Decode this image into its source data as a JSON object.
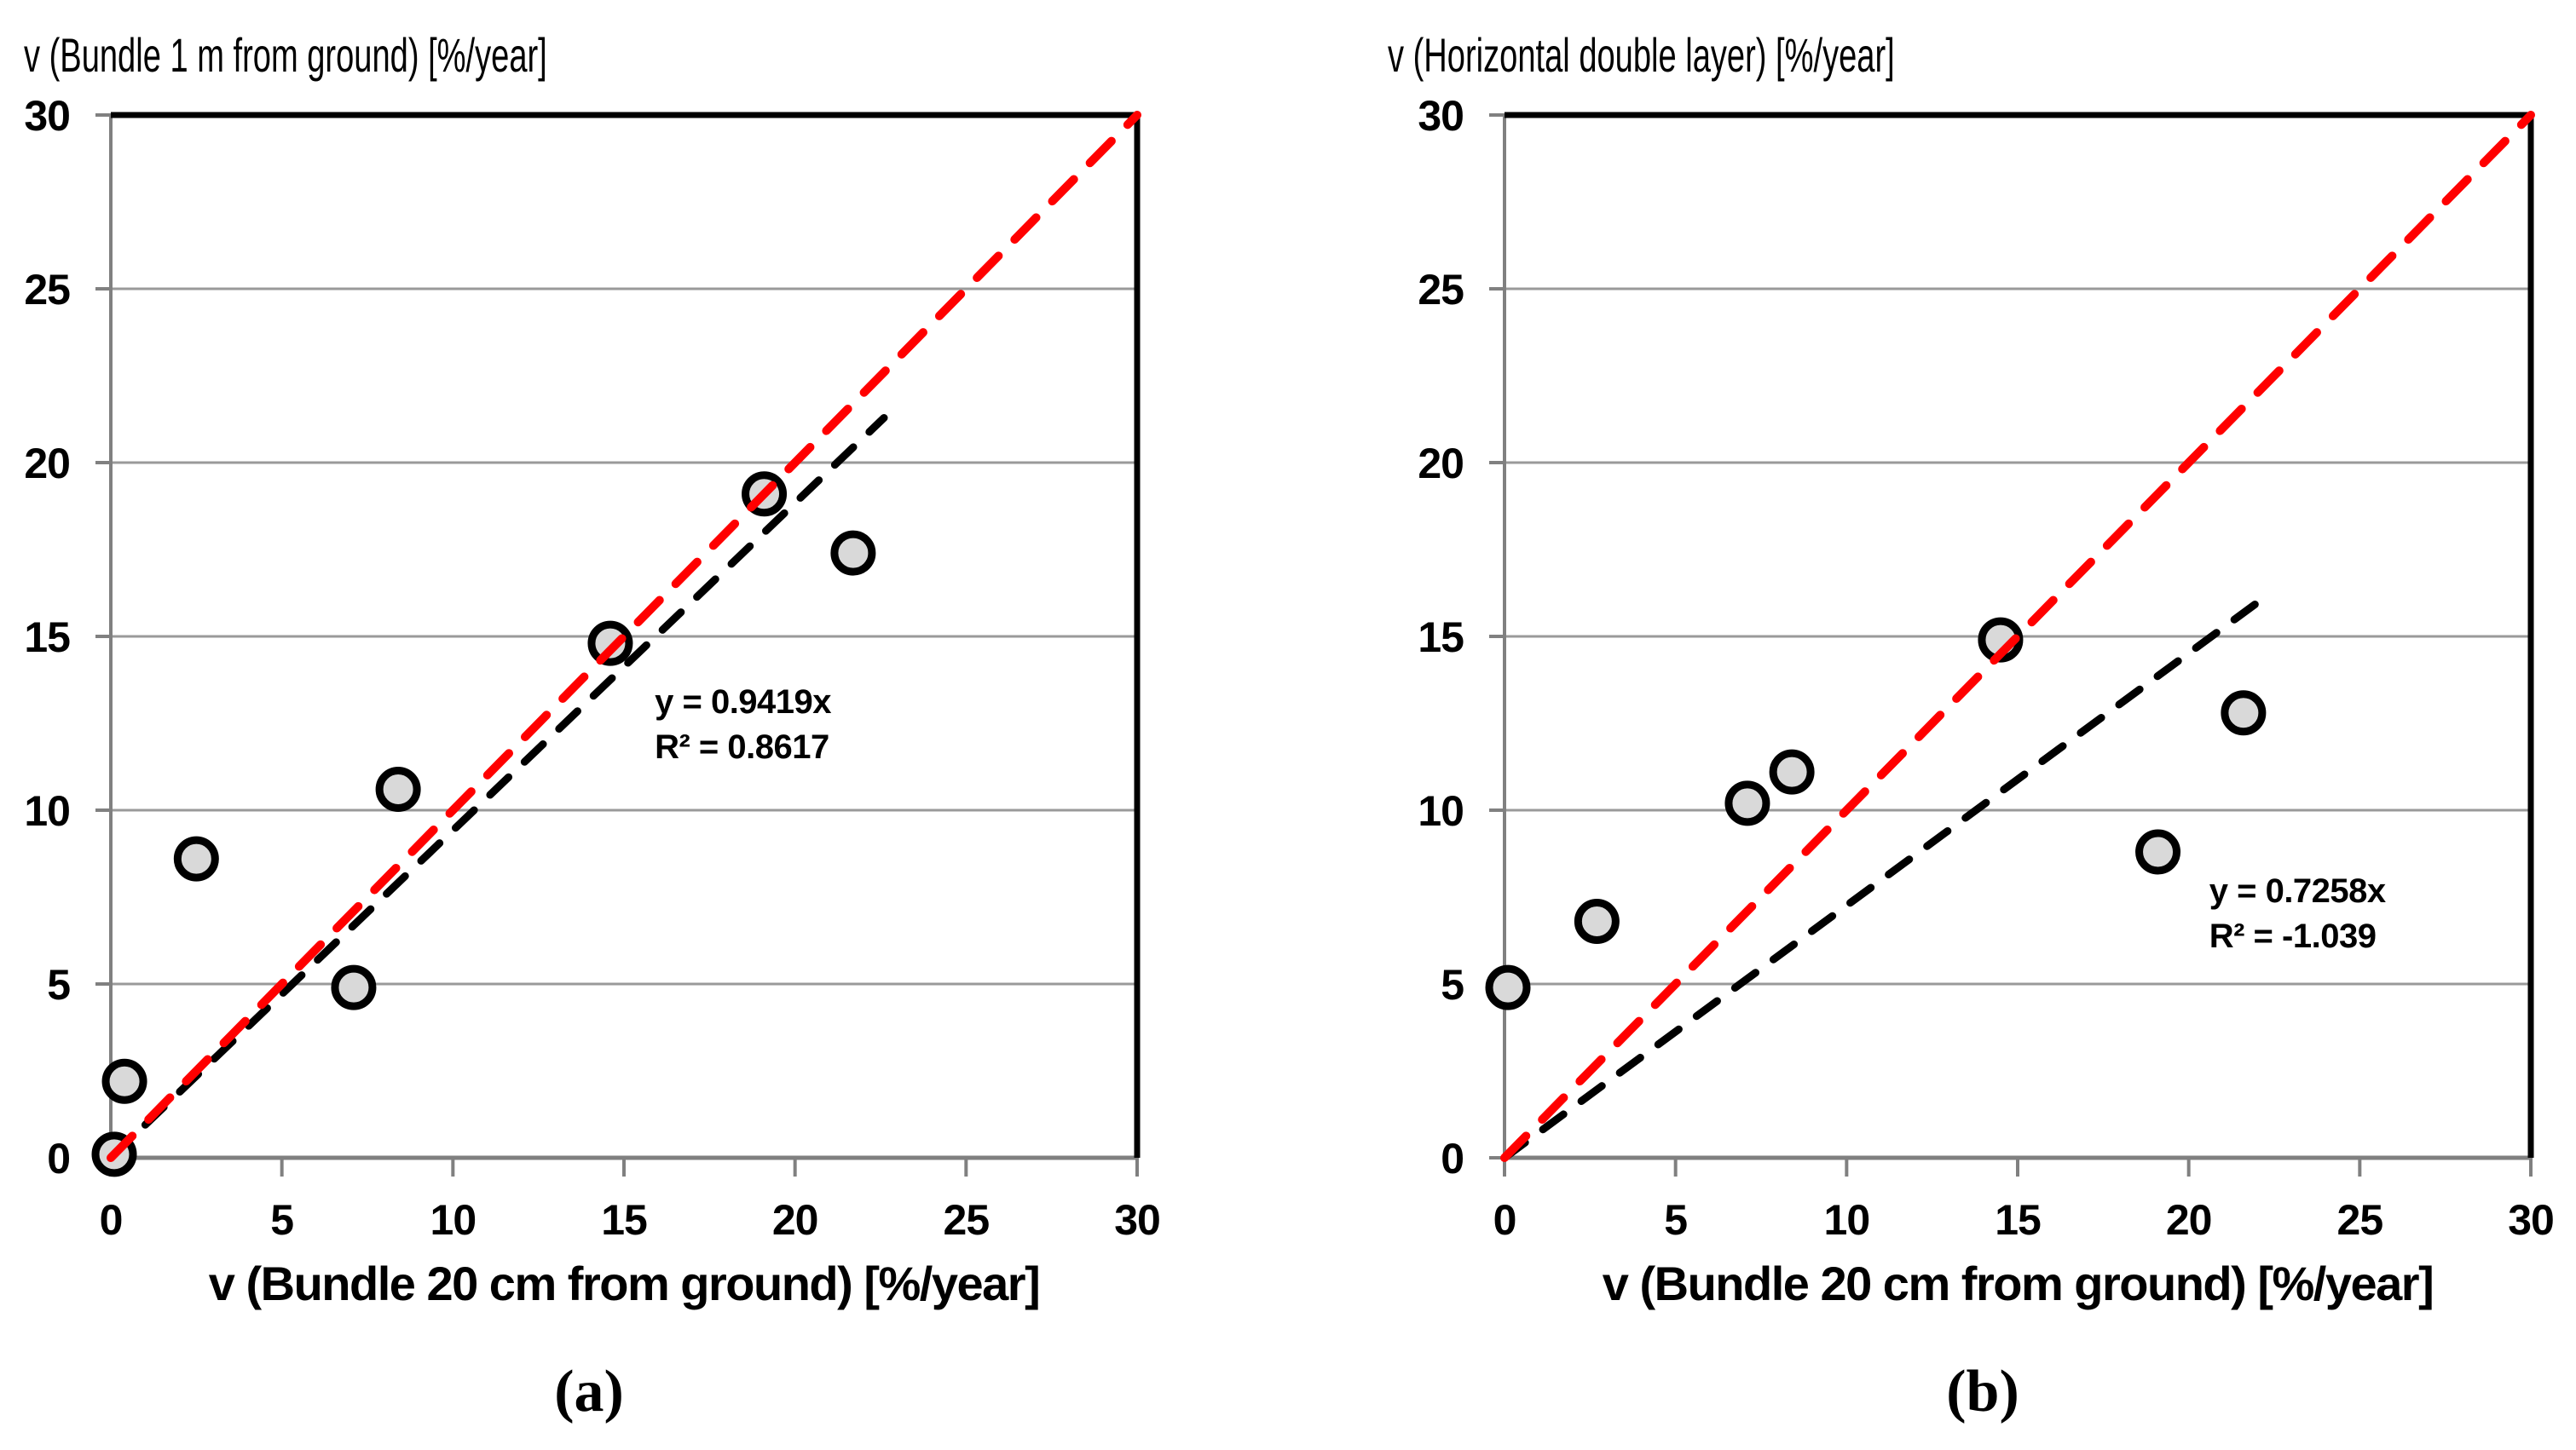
{
  "figure": {
    "description": "Two-panel scatter comparison of decay rates v [%/year] measured on bundles 20 cm from ground (x axis) against two other exposure setups (y axes)"
  },
  "colors": {
    "background": "#FFFFFF",
    "grid": "#9A9A9A",
    "axis": "#808080",
    "border": "#000000",
    "identity_line": "#FF0000",
    "trend_line": "#000000",
    "point_fill": "#D9D9D9",
    "point_stroke": "#000000",
    "text": "#000000"
  },
  "chart_data": [
    {
      "type": "scatter",
      "title": "v (Bundle 1 m from ground) [%/year]",
      "xlabel": "v (Bundle 20 cm from ground) [%/year]",
      "panel_label": "(a)",
      "xlim": [
        0,
        30
      ],
      "ylim": [
        0,
        30
      ],
      "xticks": [
        0,
        5,
        10,
        15,
        20,
        25,
        30
      ],
      "yticks": [
        0,
        5,
        10,
        15,
        20,
        25,
        30
      ],
      "grid": "horizontal-only",
      "legend": "none",
      "points": [
        [
          0.1,
          0.1
        ],
        [
          0.4,
          2.2
        ],
        [
          2.5,
          8.6
        ],
        [
          7.1,
          4.9
        ],
        [
          8.4,
          10.6
        ],
        [
          14.6,
          14.8
        ],
        [
          19.1,
          19.1
        ],
        [
          21.7,
          17.4
        ]
      ],
      "identity_line": {
        "from": [
          0,
          0
        ],
        "to": [
          30,
          30
        ],
        "color": "#FF0000",
        "style": "dashed"
      },
      "trend": {
        "slope": 0.9419,
        "x_end": 22.6,
        "color": "#000000",
        "style": "dashed",
        "label_line1": "y = 0.9419x",
        "label_line2": "R² = 0.8617",
        "label_x": 15.9,
        "label_y1": 13.1,
        "label_y2": 11.8
      }
    },
    {
      "type": "scatter",
      "title": "v (Horizontal double layer) [%/year]",
      "xlabel": "v (Bundle 20 cm from ground) [%/year]",
      "panel_label": "(b)",
      "xlim": [
        0,
        30
      ],
      "ylim": [
        0,
        30
      ],
      "xticks": [
        0,
        5,
        10,
        15,
        20,
        25,
        30
      ],
      "yticks": [
        0,
        5,
        10,
        15,
        20,
        25,
        30
      ],
      "grid": "horizontal-only",
      "legend": "none",
      "points": [
        [
          0.1,
          4.9
        ],
        [
          2.7,
          6.8
        ],
        [
          7.1,
          10.2
        ],
        [
          8.4,
          11.1
        ],
        [
          14.5,
          14.9
        ],
        [
          19.1,
          8.8
        ],
        [
          21.6,
          12.8
        ]
      ],
      "identity_line": {
        "from": [
          0,
          0
        ],
        "to": [
          30,
          30
        ],
        "color": "#FF0000",
        "style": "dashed"
      },
      "trend": {
        "slope": 0.7258,
        "x_end": 22.3,
        "color": "#000000",
        "style": "dashed",
        "label_line1": "y = 0.7258x",
        "label_line2": "R² = -1.039",
        "label_x": 20.6,
        "label_y1": 7.65,
        "label_y2": 6.35
      }
    }
  ]
}
